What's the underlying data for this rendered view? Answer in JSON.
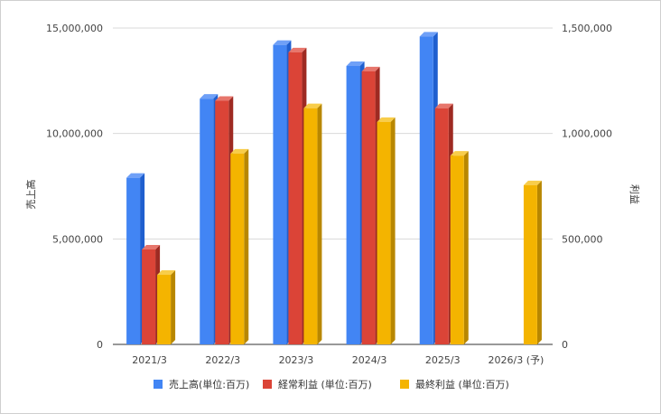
{
  "chart_data": {
    "type": "bar",
    "categories": [
      "2021/3",
      "2022/3",
      "2023/3",
      "2024/3",
      "2025/3",
      "2026/3 (予)"
    ],
    "series": [
      {
        "name": "売上高(単位:百万)",
        "axis": "left",
        "color": "#4285f4",
        "side": "#1f5fcf",
        "top": "#6fa0f7",
        "values": [
          7900000,
          11650000,
          14200000,
          13200000,
          14600000,
          null
        ]
      },
      {
        "name": "経常利益 (単位:百万)",
        "axis": "right",
        "color": "#db4437",
        "side": "#9e2a22",
        "top": "#e7766c",
        "values": [
          450000,
          1155000,
          1385000,
          1295000,
          1120000,
          null
        ]
      },
      {
        "name": "最終利益 (単位:百万)",
        "axis": "right",
        "color": "#f4b400",
        "side": "#b88700",
        "top": "#f8cd4a",
        "values": [
          330000,
          905000,
          1120000,
          1055000,
          895000,
          755000
        ]
      }
    ],
    "y_left": {
      "label": "売上高",
      "range": [
        0,
        15000000
      ],
      "ticks": [
        "0",
        "5,000,000",
        "10,000,000",
        "15,000,000"
      ]
    },
    "y_right": {
      "label": "利益",
      "range": [
        0,
        1500000
      ],
      "ticks": [
        "0",
        "500,000",
        "1,000,000",
        "1,500,000"
      ]
    },
    "grid": true,
    "legend": "bottom"
  }
}
